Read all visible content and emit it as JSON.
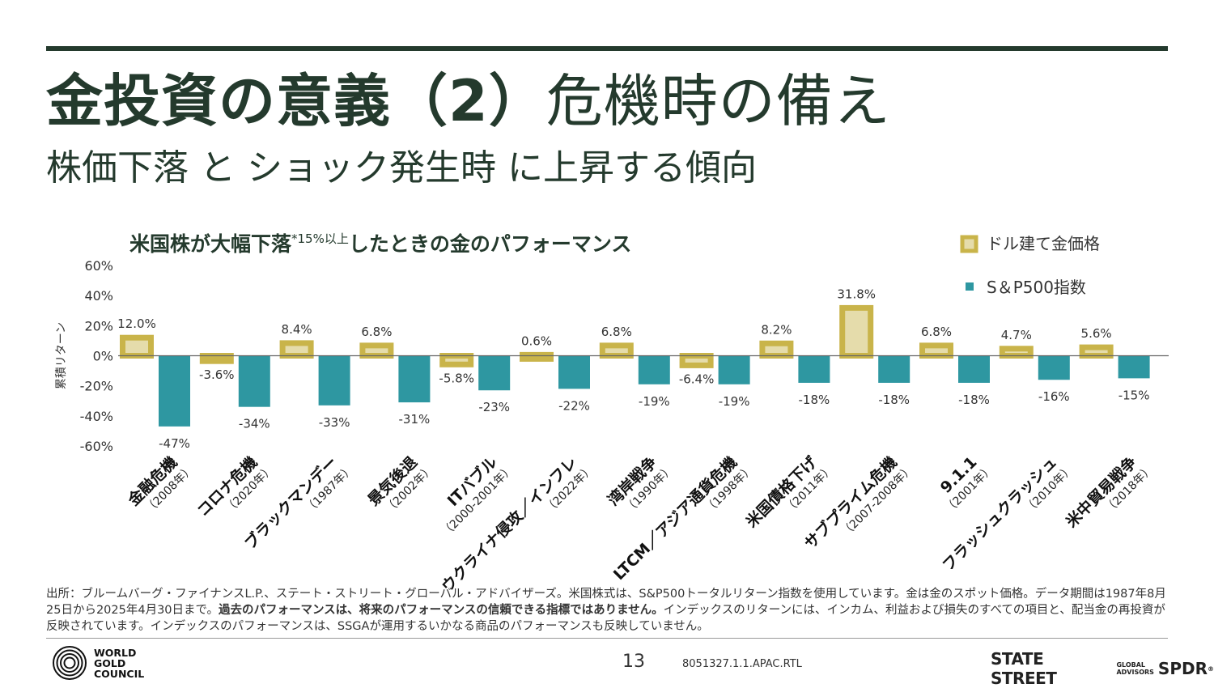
{
  "header": {
    "title_bold": "金投資の意義（2）",
    "title_light": "危機時の備え",
    "subtitle": "株価下落 と ショック発生時 に上昇する傾向"
  },
  "colors": {
    "text": "#243a2d",
    "gold_border": "#c9b44a",
    "gold_fill": "#e5dcab",
    "teal": "#2e97a1"
  },
  "chart_data": {
    "type": "bar",
    "title": "米国株が大幅下落",
    "title_note": "*15%以上",
    "title_tail": "したときの金のパフォーマンス",
    "ylabel": "累積リターン",
    "ylim": [
      -60,
      60
    ],
    "yticks": [
      "60%",
      "40%",
      "20%",
      "0%",
      "-20%",
      "-40%",
      "-60%"
    ],
    "legend_position": "top-right",
    "categories": [
      {
        "name": "金融危機",
        "period": "（2008年）"
      },
      {
        "name": "コロナ危機",
        "period": "（2020年）"
      },
      {
        "name": "ブラックマンデー",
        "period": "（1987年）"
      },
      {
        "name": "景気後退",
        "period": "（2002年）"
      },
      {
        "name": "ITバブル",
        "period": "（2000-2001年）"
      },
      {
        "name": "ウクライナ侵攻／インフレ",
        "period": "（2022年）"
      },
      {
        "name": "湾岸戦争",
        "period": "（1990年）"
      },
      {
        "name": "LTCM／アジア通貨危機",
        "period": "（1998年）"
      },
      {
        "name": "米国債格下げ",
        "period": "（2011年）"
      },
      {
        "name": "サブプライム危機",
        "period": "（2007-2008年）"
      },
      {
        "name": "9.1.1",
        "period": "（2001年）"
      },
      {
        "name": "フラッシュクラッシュ",
        "period": "（2010年）"
      },
      {
        "name": "米中貿易戦争",
        "period": "（2018年）"
      }
    ],
    "series": [
      {
        "name": "ドル建て金価格",
        "values": [
          12.0,
          -3.6,
          8.4,
          6.8,
          -5.8,
          0.6,
          6.8,
          -6.4,
          8.2,
          31.8,
          6.8,
          4.7,
          5.6
        ],
        "labels": [
          "12.0%",
          "-3.6%",
          "8.4%",
          "6.8%",
          "-5.8%",
          "0.6%",
          "6.8%",
          "-6.4%",
          "8.2%",
          "31.8%",
          "6.8%",
          "4.7%",
          "5.6%"
        ]
      },
      {
        "name": "S＆P500指数",
        "values": [
          -47,
          -34,
          -33,
          -31,
          -23,
          -22,
          -19,
          -19,
          -18,
          -18,
          -18,
          -16,
          -15
        ],
        "labels": [
          "-47%",
          "-34%",
          "-33%",
          "-31%",
          "-23%",
          "-22%",
          "-19%",
          "-19%",
          "-18%",
          "-18%",
          "-18%",
          "-16%",
          "-15%"
        ]
      }
    ]
  },
  "footnote": {
    "part1": "出所：ブルームバーグ・ファイナンスL.P.、ステート・ストリート・グローバル・アドバイザーズ。米国株式は、S&P500トータルリターン指数を使用しています。金は金のスポット価格。データ期間は1987年8月25日から2025年4月30日まで。",
    "bold": "過去のパフォーマンスは、将来のパフォーマンスの信頼できる指標ではありません。",
    "part2": "インデックスのリターンには、インカム、利益および損失のすべての項目と、配当金の再投資が反映されています。インデックスのパフォーマンスは、SSGAが運用するいかなる商品のパフォーマンスも反映していません。"
  },
  "footer": {
    "wgc_line1": "WORLD",
    "wgc_line2": "GOLD",
    "wgc_line3": "COUNCIL",
    "page_number": "13",
    "doc_code": "8051327.1.1.APAC.RTL",
    "ssga_name": "STATE STREET",
    "ssga_line1": "GLOBAL",
    "ssga_line2": "ADVISORS",
    "spdr": "SPDR",
    "reg_mark": "®"
  }
}
